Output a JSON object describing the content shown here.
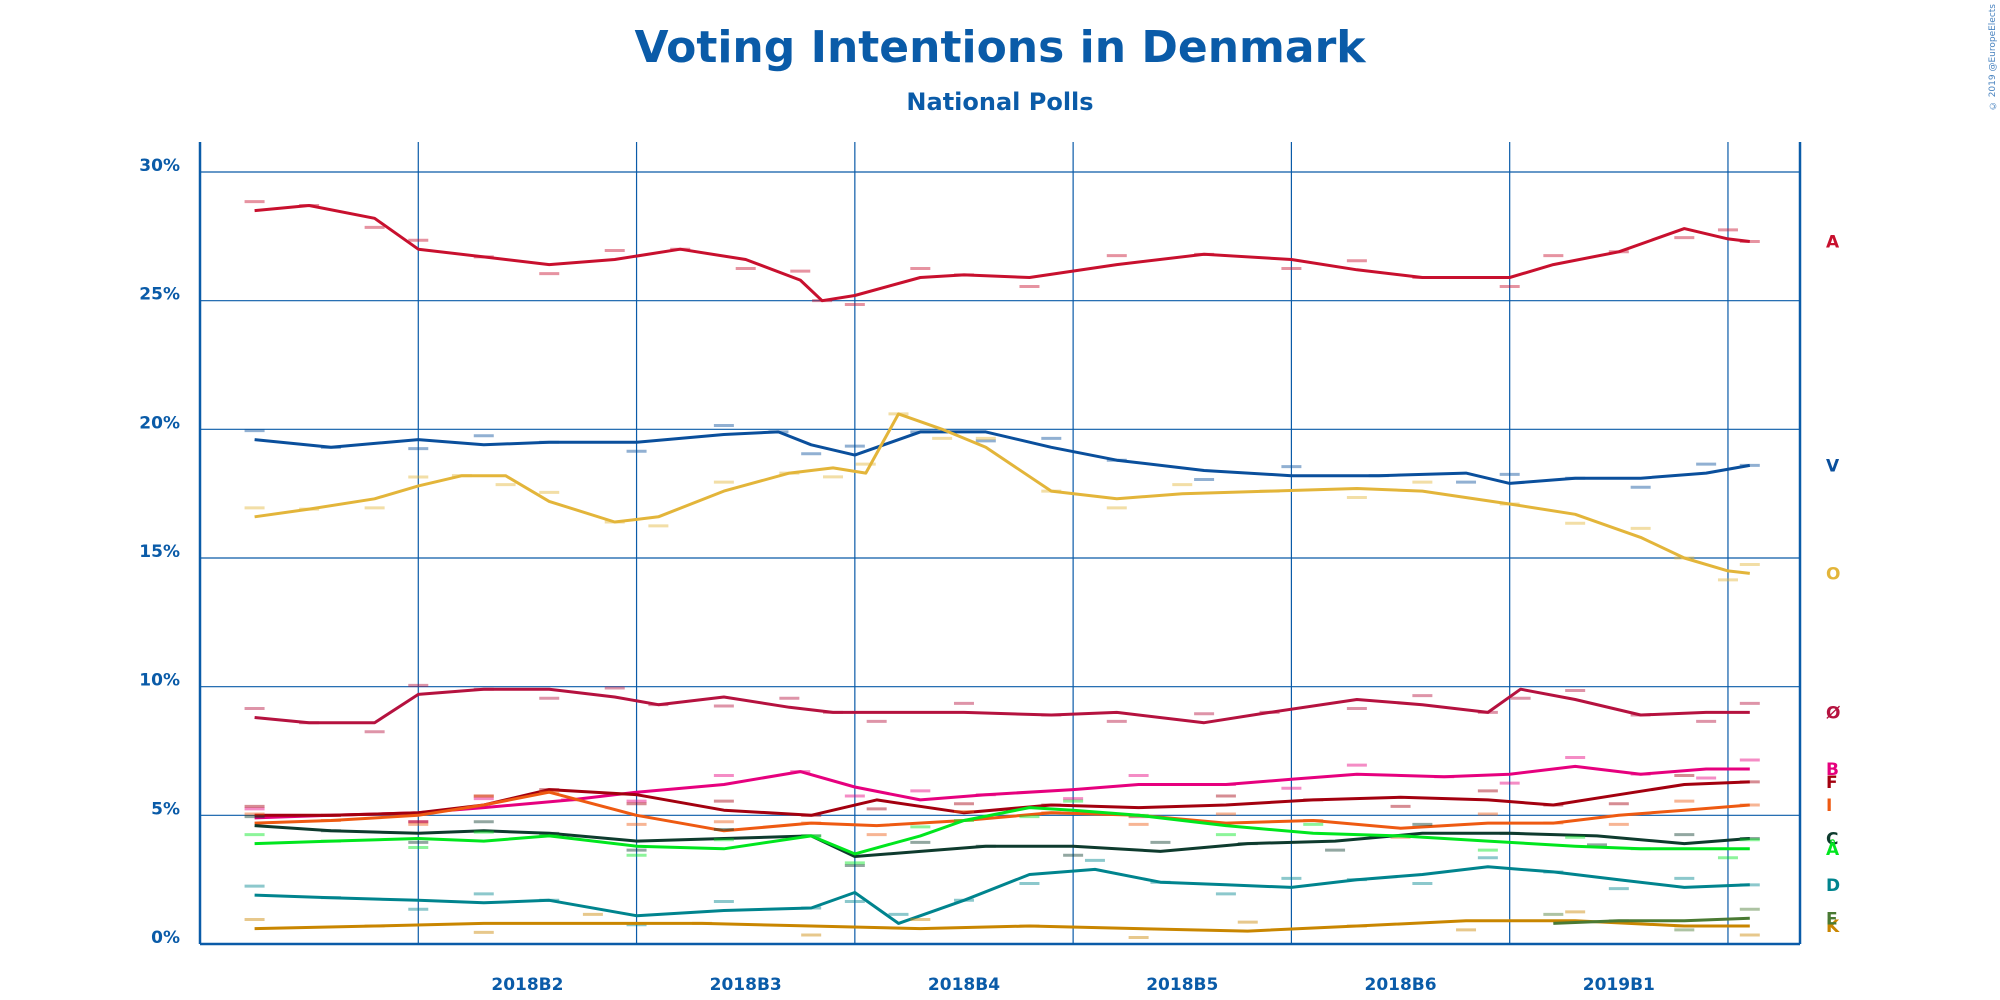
{
  "title": "Voting Intentions in Denmark",
  "subtitle": "National Polls",
  "copyright": "© 2019 @EuropeElects",
  "colors": {
    "axis": "#0a5ba8",
    "grid": "#0a5ba8"
  },
  "chart_data": {
    "type": "line",
    "title": "Voting Intentions in Denmark",
    "subtitle": "National Polls",
    "xlabel": "",
    "ylabel": "",
    "ylim": [
      0,
      30
    ],
    "y_ticks": [
      {
        "value": 0,
        "label": "0%"
      },
      {
        "value": 5,
        "label": "5%"
      },
      {
        "value": 10,
        "label": "10%"
      },
      {
        "value": 15,
        "label": "15%"
      },
      {
        "value": 20,
        "label": "20%"
      },
      {
        "value": 25,
        "label": "25%"
      },
      {
        "value": 30,
        "label": "30%"
      }
    ],
    "xlim": [
      0,
      7.33
    ],
    "x_periods": [
      "2018B2",
      "2018B3",
      "2018B4",
      "2018B5",
      "2018B6",
      "2019B1"
    ],
    "grid": true,
    "legend": "right end labels",
    "series": [
      {
        "name": "A",
        "color": "#c8102e",
        "x": [
          0.25,
          0.5,
          0.8,
          1.0,
          1.3,
          1.6,
          1.9,
          2.2,
          2.5,
          2.75,
          2.85,
          3.0,
          3.3,
          3.5,
          3.8,
          4.2,
          4.6,
          5.0,
          5.3,
          5.6,
          6.0,
          6.2,
          6.5,
          6.8,
          7.0,
          7.1
        ],
        "y": [
          28.5,
          28.7,
          28.2,
          27.0,
          26.7,
          26.4,
          26.6,
          27.0,
          26.6,
          25.8,
          25.0,
          25.2,
          25.9,
          26.0,
          25.9,
          26.4,
          26.8,
          26.6,
          26.2,
          25.9,
          25.9,
          26.4,
          26.9,
          27.8,
          27.4,
          27.3
        ]
      },
      {
        "name": "V",
        "color": "#0a4f9c",
        "x": [
          0.25,
          0.6,
          1.0,
          1.3,
          1.6,
          2.0,
          2.4,
          2.65,
          2.8,
          3.0,
          3.3,
          3.6,
          3.9,
          4.2,
          4.6,
          5.0,
          5.4,
          5.8,
          6.0,
          6.3,
          6.6,
          6.9,
          7.1
        ],
        "y": [
          19.6,
          19.3,
          19.6,
          19.4,
          19.5,
          19.5,
          19.8,
          19.9,
          19.4,
          19.0,
          19.9,
          19.9,
          19.3,
          18.8,
          18.4,
          18.2,
          18.2,
          18.3,
          17.9,
          18.1,
          18.1,
          18.3,
          18.6
        ]
      },
      {
        "name": "O",
        "color": "#e3b53a",
        "x": [
          0.25,
          0.5,
          0.8,
          1.0,
          1.2,
          1.4,
          1.6,
          1.9,
          2.1,
          2.4,
          2.7,
          2.9,
          3.05,
          3.2,
          3.4,
          3.6,
          3.9,
          4.2,
          4.5,
          4.9,
          5.3,
          5.6,
          6.0,
          6.3,
          6.6,
          6.8,
          7.0,
          7.1
        ],
        "y": [
          16.6,
          16.9,
          17.3,
          17.8,
          18.2,
          18.2,
          17.2,
          16.4,
          16.6,
          17.6,
          18.3,
          18.5,
          18.3,
          20.6,
          20.0,
          19.3,
          17.6,
          17.3,
          17.5,
          17.6,
          17.7,
          17.6,
          17.1,
          16.7,
          15.8,
          15.0,
          14.5,
          14.4
        ]
      },
      {
        "name": "Ø",
        "color": "#b5123f",
        "x": [
          0.25,
          0.5,
          0.8,
          1.0,
          1.3,
          1.6,
          1.9,
          2.1,
          2.4,
          2.7,
          2.9,
          3.1,
          3.5,
          3.9,
          4.2,
          4.6,
          4.9,
          5.3,
          5.6,
          5.9,
          6.05,
          6.3,
          6.6,
          6.9,
          7.1
        ],
        "y": [
          8.8,
          8.6,
          8.6,
          9.7,
          9.9,
          9.9,
          9.6,
          9.3,
          9.6,
          9.2,
          9.0,
          9.0,
          9.0,
          8.9,
          9.0,
          8.6,
          9.0,
          9.5,
          9.3,
          9.0,
          9.9,
          9.5,
          8.9,
          9.0,
          9.0
        ]
      },
      {
        "name": "B",
        "color": "#e6007e",
        "x": [
          0.25,
          0.6,
          1.0,
          1.3,
          1.7,
          2.0,
          2.4,
          2.75,
          3.0,
          3.3,
          3.6,
          4.0,
          4.3,
          4.7,
          5.0,
          5.3,
          5.7,
          6.0,
          6.3,
          6.6,
          6.9,
          7.1
        ],
        "y": [
          4.9,
          5.0,
          5.1,
          5.3,
          5.6,
          5.9,
          6.2,
          6.7,
          6.1,
          5.6,
          5.8,
          6.0,
          6.2,
          6.2,
          6.4,
          6.6,
          6.5,
          6.6,
          6.9,
          6.6,
          6.8,
          6.8
        ]
      },
      {
        "name": "F",
        "color": "#a3000f",
        "x": [
          0.25,
          0.6,
          1.0,
          1.3,
          1.6,
          2.0,
          2.4,
          2.8,
          3.1,
          3.5,
          3.9,
          4.3,
          4.7,
          5.1,
          5.5,
          5.9,
          6.2,
          6.5,
          6.8,
          7.1
        ],
        "y": [
          5.0,
          5.0,
          5.1,
          5.4,
          6.0,
          5.8,
          5.2,
          5.0,
          5.6,
          5.1,
          5.4,
          5.3,
          5.4,
          5.6,
          5.7,
          5.6,
          5.4,
          5.8,
          6.2,
          6.3
        ]
      },
      {
        "name": "I",
        "color": "#ee5a12",
        "x": [
          0.25,
          0.6,
          1.0,
          1.3,
          1.6,
          2.0,
          2.4,
          2.8,
          3.1,
          3.5,
          3.9,
          4.3,
          4.7,
          5.1,
          5.5,
          5.9,
          6.2,
          6.5,
          6.8,
          7.1
        ],
        "y": [
          4.7,
          4.8,
          5.0,
          5.4,
          5.9,
          5.0,
          4.4,
          4.7,
          4.6,
          4.8,
          5.1,
          5.0,
          4.7,
          4.8,
          4.5,
          4.7,
          4.7,
          5.0,
          5.2,
          5.4
        ]
      },
      {
        "name": "C",
        "color": "#0e3b2e",
        "x": [
          0.25,
          0.6,
          1.0,
          1.3,
          1.6,
          2.0,
          2.4,
          2.8,
          3.0,
          3.3,
          3.6,
          4.0,
          4.4,
          4.8,
          5.2,
          5.6,
          6.0,
          6.4,
          6.8,
          7.1
        ],
        "y": [
          4.6,
          4.4,
          4.3,
          4.4,
          4.3,
          4.0,
          4.1,
          4.2,
          3.4,
          3.6,
          3.8,
          3.8,
          3.6,
          3.9,
          4.0,
          4.3,
          4.3,
          4.2,
          3.9,
          4.1
        ]
      },
      {
        "name": "Å",
        "color": "#00e61e",
        "x": [
          0.25,
          0.6,
          1.0,
          1.3,
          1.6,
          2.0,
          2.4,
          2.8,
          3.0,
          3.3,
          3.5,
          3.8,
          4.0,
          4.3,
          4.7,
          5.1,
          5.5,
          5.9,
          6.3,
          6.6,
          7.0,
          7.1
        ],
        "y": [
          3.9,
          4.0,
          4.1,
          4.0,
          4.2,
          3.8,
          3.7,
          4.2,
          3.5,
          4.2,
          4.8,
          5.3,
          5.2,
          5.0,
          4.6,
          4.3,
          4.2,
          4.0,
          3.8,
          3.7,
          3.7,
          3.7
        ]
      },
      {
        "name": "D",
        "color": "#00848e",
        "x": [
          0.25,
          0.6,
          1.0,
          1.3,
          1.6,
          2.0,
          2.4,
          2.8,
          3.0,
          3.2,
          3.5,
          3.8,
          4.1,
          4.4,
          4.7,
          5.0,
          5.3,
          5.6,
          5.9,
          6.2,
          6.5,
          6.8,
          7.1
        ],
        "y": [
          1.9,
          1.8,
          1.7,
          1.6,
          1.7,
          1.1,
          1.3,
          1.4,
          2.0,
          0.8,
          1.7,
          2.7,
          2.9,
          2.4,
          2.3,
          2.2,
          2.5,
          2.7,
          3.0,
          2.8,
          2.5,
          2.2,
          2.3
        ]
      },
      {
        "name": "K",
        "color": "#c98600",
        "x": [
          0.25,
          0.8,
          1.3,
          1.8,
          2.3,
          2.8,
          3.3,
          3.8,
          4.3,
          4.8,
          5.3,
          5.8,
          6.3,
          6.8,
          7.1
        ],
        "y": [
          0.6,
          0.7,
          0.8,
          0.8,
          0.8,
          0.7,
          0.6,
          0.7,
          0.6,
          0.5,
          0.7,
          0.9,
          0.9,
          0.7,
          0.7
        ]
      },
      {
        "name": "E",
        "color": "#4a7a33",
        "x": [
          6.2,
          6.5,
          6.8,
          7.1
        ],
        "y": [
          0.8,
          0.9,
          0.9,
          1.0
        ]
      }
    ]
  }
}
